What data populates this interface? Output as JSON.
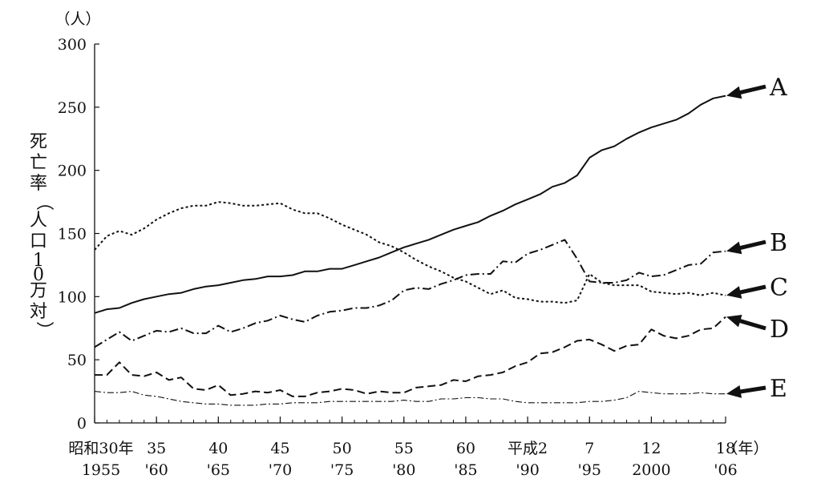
{
  "chart_data": {
    "type": "line",
    "title": "",
    "ylabel": "死亡率（人口10万対）",
    "yunit": "（人）",
    "xunit": "（年）",
    "ylim": [
      0,
      300
    ],
    "yticks": [
      0,
      50,
      100,
      150,
      200,
      250,
      300
    ],
    "xlim": [
      1955,
      2006
    ],
    "xticks": [
      {
        "value": 1955,
        "top": "昭和30年",
        "bottom": "1955"
      },
      {
        "value": 1960,
        "top": "35",
        "bottom": "'60"
      },
      {
        "value": 1965,
        "top": "40",
        "bottom": "'65"
      },
      {
        "value": 1970,
        "top": "45",
        "bottom": "'70"
      },
      {
        "value": 1975,
        "top": "50",
        "bottom": "'75"
      },
      {
        "value": 1980,
        "top": "55",
        "bottom": "'80"
      },
      {
        "value": 1985,
        "top": "60",
        "bottom": "'85"
      },
      {
        "value": 1990,
        "top": "平成2",
        "bottom": "'90"
      },
      {
        "value": 1995,
        "top": "7",
        "bottom": "'95"
      },
      {
        "value": 2000,
        "top": "12",
        "bottom": "2000"
      },
      {
        "value": 2006,
        "top": "18",
        "bottom": "'06"
      }
    ],
    "series": [
      {
        "name": "A",
        "style": "solid",
        "points": [
          [
            1955,
            87
          ],
          [
            1956,
            90
          ],
          [
            1957,
            91
          ],
          [
            1958,
            95
          ],
          [
            1959,
            98
          ],
          [
            1960,
            100
          ],
          [
            1961,
            102
          ],
          [
            1962,
            103
          ],
          [
            1963,
            106
          ],
          [
            1964,
            108
          ],
          [
            1965,
            109
          ],
          [
            1966,
            111
          ],
          [
            1967,
            113
          ],
          [
            1968,
            114
          ],
          [
            1969,
            116
          ],
          [
            1970,
            116
          ],
          [
            1971,
            117
          ],
          [
            1972,
            120
          ],
          [
            1973,
            120
          ],
          [
            1974,
            122
          ],
          [
            1975,
            122
          ],
          [
            1976,
            125
          ],
          [
            1977,
            128
          ],
          [
            1978,
            131
          ],
          [
            1979,
            135
          ],
          [
            1980,
            139
          ],
          [
            1981,
            142
          ],
          [
            1982,
            145
          ],
          [
            1983,
            149
          ],
          [
            1984,
            153
          ],
          [
            1985,
            156
          ],
          [
            1986,
            159
          ],
          [
            1987,
            164
          ],
          [
            1988,
            168
          ],
          [
            1989,
            173
          ],
          [
            1990,
            177
          ],
          [
            1991,
            181
          ],
          [
            1992,
            187
          ],
          [
            1993,
            190
          ],
          [
            1994,
            196
          ],
          [
            1995,
            210
          ],
          [
            1996,
            216
          ],
          [
            1997,
            219
          ],
          [
            1998,
            225
          ],
          [
            1999,
            230
          ],
          [
            2000,
            234
          ],
          [
            2001,
            237
          ],
          [
            2002,
            240
          ],
          [
            2003,
            245
          ],
          [
            2004,
            252
          ],
          [
            2005,
            257
          ],
          [
            2006,
            259
          ]
        ]
      },
      {
        "name": "B",
        "style": "dashdot",
        "points": [
          [
            1955,
            60
          ],
          [
            1956,
            66
          ],
          [
            1957,
            72
          ],
          [
            1958,
            65
          ],
          [
            1959,
            69
          ],
          [
            1960,
            73
          ],
          [
            1961,
            72
          ],
          [
            1962,
            75
          ],
          [
            1963,
            71
          ],
          [
            1964,
            71
          ],
          [
            1965,
            77
          ],
          [
            1966,
            72
          ],
          [
            1967,
            75
          ],
          [
            1968,
            79
          ],
          [
            1969,
            81
          ],
          [
            1970,
            85
          ],
          [
            1971,
            82
          ],
          [
            1972,
            80
          ],
          [
            1973,
            85
          ],
          [
            1974,
            88
          ],
          [
            1975,
            89
          ],
          [
            1976,
            91
          ],
          [
            1977,
            91
          ],
          [
            1978,
            93
          ],
          [
            1979,
            97
          ],
          [
            1980,
            105
          ],
          [
            1981,
            107
          ],
          [
            1982,
            106
          ],
          [
            1983,
            110
          ],
          [
            1984,
            113
          ],
          [
            1985,
            117
          ],
          [
            1986,
            118
          ],
          [
            1987,
            118
          ],
          [
            1988,
            128
          ],
          [
            1989,
            127
          ],
          [
            1990,
            134
          ],
          [
            1991,
            137
          ],
          [
            1992,
            141
          ],
          [
            1993,
            145
          ],
          [
            1994,
            130
          ],
          [
            1995,
            112
          ],
          [
            1996,
            111
          ],
          [
            1997,
            111
          ],
          [
            1998,
            113
          ],
          [
            1999,
            119
          ],
          [
            2000,
            116
          ],
          [
            2001,
            117
          ],
          [
            2002,
            121
          ],
          [
            2003,
            125
          ],
          [
            2004,
            126
          ],
          [
            2005,
            135
          ],
          [
            2006,
            136
          ]
        ]
      },
      {
        "name": "C",
        "style": "dotted",
        "points": [
          [
            1955,
            137
          ],
          [
            1956,
            148
          ],
          [
            1957,
            152
          ],
          [
            1958,
            149
          ],
          [
            1959,
            154
          ],
          [
            1960,
            161
          ],
          [
            1961,
            166
          ],
          [
            1962,
            170
          ],
          [
            1963,
            172
          ],
          [
            1964,
            172
          ],
          [
            1965,
            175
          ],
          [
            1966,
            174
          ],
          [
            1967,
            172
          ],
          [
            1968,
            172
          ],
          [
            1969,
            173
          ],
          [
            1970,
            174
          ],
          [
            1971,
            169
          ],
          [
            1972,
            166
          ],
          [
            1973,
            166
          ],
          [
            1974,
            162
          ],
          [
            1975,
            157
          ],
          [
            1976,
            153
          ],
          [
            1977,
            149
          ],
          [
            1978,
            143
          ],
          [
            1979,
            140
          ],
          [
            1980,
            135
          ],
          [
            1981,
            129
          ],
          [
            1982,
            124
          ],
          [
            1983,
            120
          ],
          [
            1984,
            115
          ],
          [
            1985,
            112
          ],
          [
            1986,
            107
          ],
          [
            1987,
            102
          ],
          [
            1988,
            105
          ],
          [
            1989,
            99
          ],
          [
            1990,
            98
          ],
          [
            1991,
            96
          ],
          [
            1992,
            96
          ],
          [
            1993,
            95
          ],
          [
            1994,
            97
          ],
          [
            1995,
            118
          ],
          [
            1996,
            111
          ],
          [
            1997,
            109
          ],
          [
            1998,
            109
          ],
          [
            1999,
            109
          ],
          [
            2000,
            104
          ],
          [
            2001,
            103
          ],
          [
            2002,
            102
          ],
          [
            2003,
            103
          ],
          [
            2004,
            101
          ],
          [
            2005,
            103
          ],
          [
            2006,
            101
          ]
        ]
      },
      {
        "name": "D",
        "style": "dashed",
        "points": [
          [
            1955,
            38
          ],
          [
            1956,
            38
          ],
          [
            1957,
            48
          ],
          [
            1958,
            38
          ],
          [
            1959,
            37
          ],
          [
            1960,
            40
          ],
          [
            1961,
            34
          ],
          [
            1962,
            36
          ],
          [
            1963,
            27
          ],
          [
            1964,
            26
          ],
          [
            1965,
            30
          ],
          [
            1966,
            22
          ],
          [
            1967,
            23
          ],
          [
            1968,
            25
          ],
          [
            1969,
            24
          ],
          [
            1970,
            26
          ],
          [
            1971,
            21
          ],
          [
            1972,
            21
          ],
          [
            1973,
            24
          ],
          [
            1974,
            25
          ],
          [
            1975,
            27
          ],
          [
            1976,
            26
          ],
          [
            1977,
            23
          ],
          [
            1978,
            25
          ],
          [
            1979,
            24
          ],
          [
            1980,
            24
          ],
          [
            1981,
            28
          ],
          [
            1982,
            29
          ],
          [
            1983,
            30
          ],
          [
            1984,
            34
          ],
          [
            1985,
            33
          ],
          [
            1986,
            37
          ],
          [
            1987,
            38
          ],
          [
            1988,
            40
          ],
          [
            1989,
            45
          ],
          [
            1990,
            48
          ],
          [
            1991,
            55
          ],
          [
            1992,
            56
          ],
          [
            1993,
            60
          ],
          [
            1994,
            65
          ],
          [
            1995,
            66
          ],
          [
            1996,
            62
          ],
          [
            1997,
            57
          ],
          [
            1998,
            61
          ],
          [
            1999,
            62
          ],
          [
            2000,
            74
          ],
          [
            2001,
            69
          ],
          [
            2002,
            67
          ],
          [
            2003,
            69
          ],
          [
            2004,
            74
          ],
          [
            2005,
            75
          ],
          [
            2006,
            84
          ]
        ]
      },
      {
        "name": "E",
        "style": "thindashdot",
        "points": [
          [
            1955,
            25
          ],
          [
            1956,
            24
          ],
          [
            1957,
            24
          ],
          [
            1958,
            25
          ],
          [
            1959,
            22
          ],
          [
            1960,
            21
          ],
          [
            1961,
            19
          ],
          [
            1962,
            17
          ],
          [
            1963,
            16
          ],
          [
            1964,
            15
          ],
          [
            1965,
            15
          ],
          [
            1966,
            14
          ],
          [
            1967,
            14
          ],
          [
            1968,
            14
          ],
          [
            1969,
            15
          ],
          [
            1970,
            15
          ],
          [
            1971,
            16
          ],
          [
            1972,
            16
          ],
          [
            1973,
            16
          ],
          [
            1974,
            17
          ],
          [
            1975,
            17
          ],
          [
            1976,
            17
          ],
          [
            1977,
            17
          ],
          [
            1978,
            17
          ],
          [
            1979,
            17
          ],
          [
            1980,
            18
          ],
          [
            1981,
            17
          ],
          [
            1982,
            17
          ],
          [
            1983,
            19
          ],
          [
            1984,
            19
          ],
          [
            1985,
            20
          ],
          [
            1986,
            20
          ],
          [
            1987,
            19
          ],
          [
            1988,
            19
          ],
          [
            1989,
            17
          ],
          [
            1990,
            16
          ],
          [
            1991,
            16
          ],
          [
            1992,
            16
          ],
          [
            1993,
            16
          ],
          [
            1994,
            16
          ],
          [
            1995,
            17
          ],
          [
            1996,
            17
          ],
          [
            1997,
            18
          ],
          [
            1998,
            20
          ],
          [
            1999,
            25
          ],
          [
            2000,
            24
          ],
          [
            2001,
            23
          ],
          [
            2002,
            23
          ],
          [
            2003,
            23
          ],
          [
            2004,
            24
          ],
          [
            2005,
            23
          ],
          [
            2006,
            23
          ]
        ]
      }
    ]
  }
}
